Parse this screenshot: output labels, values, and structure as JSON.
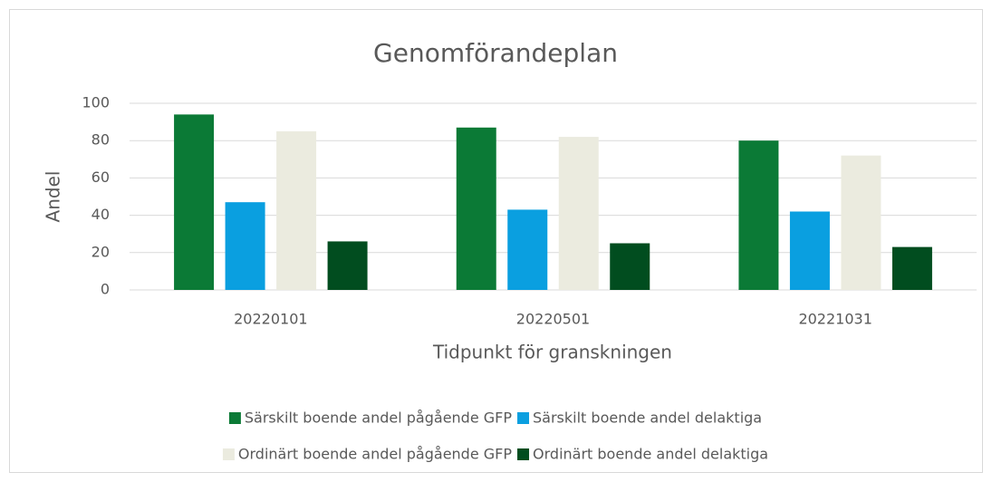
{
  "chart_data": {
    "type": "bar",
    "title": "Genomförandeplan",
    "x_label": "Tidpunkt för granskningen",
    "y_label": "Andel",
    "categories": [
      "20220101",
      "20220501",
      "20221031"
    ],
    "series": [
      {
        "name": "Särskilt boende andel pågående GFP",
        "color": "#0b7a36",
        "values": [
          94,
          87,
          80
        ]
      },
      {
        "name": "Särskilt boende andel delaktiga",
        "color": "#0a9fe0",
        "values": [
          47,
          43,
          42
        ]
      },
      {
        "name": "Ordinärt boende andel pågående GFP",
        "color": "#ebebdf",
        "values": [
          85,
          82,
          72
        ]
      },
      {
        "name": "Ordinärt boende andel delaktiga",
        "color": "#014d1f",
        "values": [
          26,
          25,
          23
        ]
      }
    ],
    "ylim": [
      0,
      100
    ],
    "yticks": [
      0,
      20,
      40,
      60,
      80,
      100
    ],
    "grid": true,
    "legend": "bottom"
  }
}
